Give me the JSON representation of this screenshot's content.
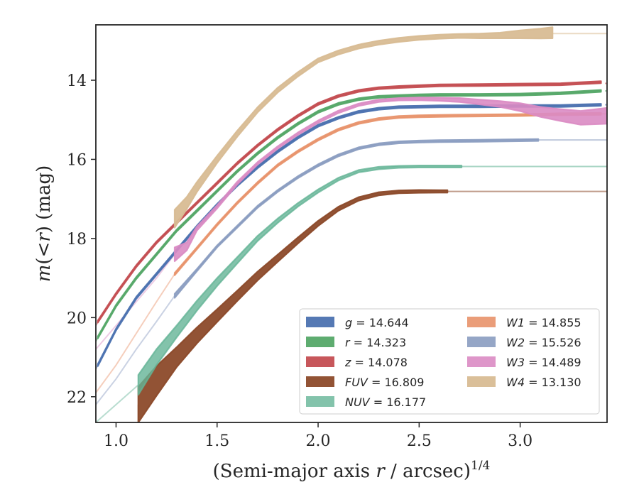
{
  "chart_data": {
    "type": "line",
    "xlabel": "(Semi-major axis r / arcsec)^1/4",
    "ylabel": "m(<r) (mag)",
    "xlim": [
      0.9,
      3.43
    ],
    "ylim": [
      22.65,
      12.6
    ],
    "y_inverted": true,
    "xticks": [
      "1.0",
      "1.5",
      "2.0",
      "2.5",
      "3.0"
    ],
    "xtick_values": [
      1.0,
      1.5,
      2.0,
      2.5,
      3.0
    ],
    "yticks": [
      "14",
      "16",
      "18",
      "20",
      "22"
    ],
    "ytick_values": [
      14,
      16,
      18,
      20,
      22
    ],
    "grid": false,
    "legend_position": "lower-right",
    "series": [
      {
        "name": "g = 14.644",
        "band": "g",
        "mag": "14.644",
        "color": "#4c72b0",
        "alpha": 0.95,
        "lower_limit": false,
        "x": [
          0.91,
          1.0,
          1.1,
          1.2,
          1.3,
          1.4,
          1.5,
          1.6,
          1.7,
          1.8,
          1.9,
          2.0,
          2.1,
          2.2,
          2.3,
          2.4,
          2.5,
          2.6,
          2.8,
          3.0,
          3.2,
          3.4
        ],
        "y": [
          21.2,
          20.3,
          19.5,
          18.9,
          18.3,
          17.7,
          17.15,
          16.65,
          16.2,
          15.8,
          15.45,
          15.15,
          14.95,
          14.8,
          14.72,
          14.68,
          14.67,
          14.66,
          14.66,
          14.65,
          14.65,
          14.62
        ],
        "width": [
          0.05,
          0.05,
          0.05,
          0.05,
          0.05,
          0.05,
          0.05,
          0.05,
          0.05,
          0.05,
          0.05,
          0.05,
          0.05,
          0.05,
          0.05,
          0.05,
          0.05,
          0.05,
          0.05,
          0.05,
          0.05,
          0.05
        ]
      },
      {
        "name": "r = 14.323",
        "band": "r",
        "mag": "14.323",
        "color": "#55a868",
        "alpha": 0.95,
        "lower_limit": false,
        "x": [
          0.91,
          1.0,
          1.1,
          1.2,
          1.3,
          1.4,
          1.5,
          1.6,
          1.7,
          1.8,
          1.9,
          2.0,
          2.1,
          2.2,
          2.3,
          2.4,
          2.5,
          2.6,
          2.8,
          3.0,
          3.2,
          3.4
        ],
        "y": [
          20.5,
          19.7,
          19.0,
          18.4,
          17.8,
          17.3,
          16.8,
          16.3,
          15.85,
          15.45,
          15.1,
          14.8,
          14.6,
          14.48,
          14.42,
          14.4,
          14.38,
          14.37,
          14.37,
          14.36,
          14.33,
          14.27
        ],
        "width": [
          0.05,
          0.05,
          0.05,
          0.05,
          0.05,
          0.05,
          0.05,
          0.05,
          0.05,
          0.05,
          0.05,
          0.05,
          0.05,
          0.05,
          0.05,
          0.05,
          0.05,
          0.05,
          0.05,
          0.05,
          0.05,
          0.05
        ]
      },
      {
        "name": "z = 14.078",
        "band": "z",
        "mag": "14.078",
        "color": "#c44e52",
        "alpha": 0.95,
        "lower_limit": false,
        "x": [
          0.91,
          1.0,
          1.1,
          1.2,
          1.3,
          1.4,
          1.5,
          1.6,
          1.7,
          1.8,
          1.9,
          2.0,
          2.1,
          2.2,
          2.3,
          2.4,
          2.5,
          2.6,
          2.8,
          3.0,
          3.2,
          3.4
        ],
        "y": [
          20.1,
          19.4,
          18.7,
          18.1,
          17.6,
          17.1,
          16.6,
          16.1,
          15.65,
          15.25,
          14.9,
          14.6,
          14.4,
          14.27,
          14.2,
          14.17,
          14.15,
          14.13,
          14.12,
          14.11,
          14.1,
          14.05
        ],
        "width": [
          0.05,
          0.05,
          0.05,
          0.05,
          0.05,
          0.05,
          0.05,
          0.05,
          0.05,
          0.05,
          0.05,
          0.05,
          0.05,
          0.05,
          0.05,
          0.05,
          0.05,
          0.05,
          0.05,
          0.05,
          0.05,
          0.05
        ]
      },
      {
        "name": "FUV = 16.809",
        "band": "FUV",
        "mag": "16.809",
        "color": "#8c4a2a",
        "alpha": 0.95,
        "lower_limit": false,
        "x": [
          1.11,
          1.2,
          1.3,
          1.4,
          1.5,
          1.6,
          1.7,
          1.8,
          1.9,
          2.0,
          2.1,
          2.2,
          2.3,
          2.4,
          2.5,
          2.6,
          2.64
        ],
        "y": [
          22.2,
          21.6,
          21.0,
          20.45,
          19.95,
          19.45,
          18.95,
          18.5,
          18.05,
          17.62,
          17.25,
          17.0,
          16.87,
          16.82,
          16.81,
          16.81,
          16.81
        ],
        "width": [
          0.9,
          0.75,
          0.5,
          0.4,
          0.32,
          0.26,
          0.22,
          0.18,
          0.15,
          0.13,
          0.1,
          0.09,
          0.08,
          0.07,
          0.07,
          0.06,
          0.06
        ]
      },
      {
        "name": "NUV = 16.177",
        "band": "NUV",
        "mag": "16.177",
        "color": "#64b496",
        "alpha": 0.8,
        "lower_limit": false,
        "x": [
          1.11,
          1.2,
          1.3,
          1.4,
          1.5,
          1.6,
          1.7,
          1.8,
          1.9,
          2.0,
          2.1,
          2.2,
          2.3,
          2.4,
          2.5,
          2.6,
          2.71
        ],
        "y": [
          21.7,
          21.0,
          20.35,
          19.7,
          19.1,
          18.55,
          18.0,
          17.55,
          17.15,
          16.8,
          16.5,
          16.3,
          16.22,
          16.19,
          16.18,
          16.18,
          16.18
        ],
        "width": [
          0.5,
          0.4,
          0.3,
          0.25,
          0.2,
          0.16,
          0.13,
          0.11,
          0.09,
          0.08,
          0.07,
          0.06,
          0.06,
          0.05,
          0.05,
          0.05,
          0.05
        ]
      },
      {
        "name": "W1 = 14.855",
        "band": "W1",
        "mag": "14.855",
        "color": "#e8926a",
        "alpha": 0.9,
        "lower_limit": false,
        "x": [
          1.29,
          1.4,
          1.5,
          1.6,
          1.7,
          1.8,
          1.9,
          2.0,
          2.1,
          2.2,
          2.3,
          2.4,
          2.5,
          2.6,
          2.8,
          3.0,
          3.2,
          3.4
        ],
        "y": [
          18.9,
          18.25,
          17.65,
          17.1,
          16.6,
          16.15,
          15.8,
          15.5,
          15.25,
          15.08,
          14.98,
          14.93,
          14.91,
          14.9,
          14.89,
          14.88,
          14.86,
          14.85
        ],
        "width": [
          0.06,
          0.05,
          0.05,
          0.05,
          0.05,
          0.05,
          0.05,
          0.05,
          0.05,
          0.05,
          0.05,
          0.05,
          0.05,
          0.05,
          0.05,
          0.05,
          0.05,
          0.05
        ]
      },
      {
        "name": "W2 = 15.526",
        "band": "W2",
        "mag": "15.526",
        "color": "#8a9cc0",
        "alpha": 0.9,
        "lower_limit": false,
        "x": [
          1.29,
          1.4,
          1.5,
          1.6,
          1.7,
          1.8,
          1.9,
          2.0,
          2.1,
          2.2,
          2.3,
          2.4,
          2.5,
          2.6,
          2.8,
          3.09
        ],
        "y": [
          19.45,
          18.8,
          18.2,
          17.7,
          17.2,
          16.8,
          16.45,
          16.15,
          15.9,
          15.72,
          15.62,
          15.57,
          15.55,
          15.54,
          15.53,
          15.51
        ],
        "width": [
          0.1,
          0.06,
          0.05,
          0.05,
          0.05,
          0.05,
          0.05,
          0.05,
          0.05,
          0.05,
          0.05,
          0.05,
          0.05,
          0.05,
          0.05,
          0.05
        ]
      },
      {
        "name": "W3 = 14.489",
        "band": "W3",
        "mag": "14.489",
        "color": "#da8bc3",
        "alpha": 0.9,
        "lower_limit": false,
        "x": [
          1.29,
          1.35,
          1.4,
          1.5,
          1.6,
          1.7,
          1.8,
          1.9,
          2.0,
          2.1,
          2.2,
          2.3,
          2.4,
          2.5,
          2.6,
          2.7,
          2.8,
          2.9,
          3.0,
          3.1,
          3.2,
          3.3,
          3.43
        ],
        "y": [
          18.4,
          18.2,
          17.75,
          17.2,
          16.6,
          16.1,
          15.7,
          15.35,
          15.05,
          14.8,
          14.62,
          14.52,
          14.48,
          14.47,
          14.48,
          14.5,
          14.55,
          14.6,
          14.68,
          14.8,
          14.88,
          14.95,
          14.9
        ],
        "width": [
          0.35,
          0.2,
          0.1,
          0.08,
          0.07,
          0.06,
          0.06,
          0.06,
          0.06,
          0.06,
          0.06,
          0.06,
          0.06,
          0.07,
          0.08,
          0.1,
          0.12,
          0.15,
          0.2,
          0.25,
          0.3,
          0.35,
          0.4
        ]
      },
      {
        "name": "W4 = 13.130",
        "band": "W4",
        "mag": "13.130",
        "color": "#d8bc94",
        "alpha": 0.95,
        "lower_limit": false,
        "x": [
          1.29,
          1.35,
          1.4,
          1.5,
          1.6,
          1.7,
          1.8,
          1.9,
          2.0,
          2.1,
          2.2,
          2.3,
          2.4,
          2.5,
          2.6,
          2.7,
          2.8,
          2.9,
          3.0,
          3.1,
          3.16
        ],
        "y": [
          17.5,
          17.1,
          16.7,
          16.0,
          15.35,
          14.75,
          14.25,
          13.85,
          13.5,
          13.3,
          13.15,
          13.05,
          12.98,
          12.93,
          12.9,
          12.88,
          12.88,
          12.87,
          12.84,
          12.82,
          12.8
        ],
        "width": [
          0.45,
          0.3,
          0.25,
          0.18,
          0.15,
          0.13,
          0.12,
          0.11,
          0.1,
          0.1,
          0.1,
          0.1,
          0.1,
          0.1,
          0.1,
          0.1,
          0.12,
          0.14,
          0.2,
          0.25,
          0.28
        ]
      }
    ],
    "lower_limits": [
      {
        "band": "g",
        "x": [
          3.42,
          3.43
        ],
        "y": [
          14.62,
          14.62
        ]
      },
      {
        "band": "r",
        "x": [
          3.42,
          3.43
        ],
        "y": [
          14.27,
          14.27
        ]
      },
      {
        "band": "z",
        "x": [
          3.42,
          3.43
        ],
        "y": [
          14.08,
          14.08
        ]
      },
      {
        "band": "FUV",
        "x": [
          2.64,
          3.43
        ],
        "y": [
          16.81,
          16.81
        ]
      },
      {
        "band": "NUV",
        "x": [
          2.71,
          3.43
        ],
        "y": [
          16.18,
          16.18
        ]
      },
      {
        "band": "W1",
        "x": [
          3.4,
          3.43
        ],
        "y": [
          14.85,
          14.85
        ]
      },
      {
        "band": "W2",
        "x": [
          3.09,
          3.43
        ],
        "y": [
          15.51,
          15.51
        ]
      },
      {
        "band": "W4",
        "x": [
          3.16,
          3.43
        ],
        "y": [
          12.82,
          12.82
        ]
      }
    ],
    "extrapolations": [
      {
        "band": "g",
        "x": [
          0.9,
          1.0
        ],
        "y": [
          21.3,
          20.3
        ]
      },
      {
        "band": "r",
        "x": [
          0.9,
          1.0
        ],
        "y": [
          20.6,
          19.7
        ]
      },
      {
        "band": "z",
        "x": [
          0.9,
          1.0
        ],
        "y": [
          20.2,
          19.4
        ]
      },
      {
        "band": "FUV",
        "x": [
          1.11,
          1.11
        ],
        "y": [
          22.65,
          22.2
        ]
      },
      {
        "band": "NUV",
        "x": [
          0.9,
          1.11
        ],
        "y": [
          22.65,
          21.7
        ]
      },
      {
        "band": "W1",
        "x": [
          0.9,
          1.0,
          1.1,
          1.2,
          1.29
        ],
        "y": [
          21.9,
          21.2,
          20.4,
          19.6,
          18.9
        ]
      },
      {
        "band": "W2",
        "x": [
          0.9,
          1.0,
          1.1,
          1.2,
          1.29
        ],
        "y": [
          22.2,
          21.55,
          20.8,
          20.1,
          19.45
        ]
      },
      {
        "band": "W3",
        "x": [
          0.9,
          1.0,
          1.1,
          1.2,
          1.29
        ],
        "y": [
          20.8,
          20.2,
          19.6,
          19.0,
          18.4
        ]
      }
    ]
  }
}
